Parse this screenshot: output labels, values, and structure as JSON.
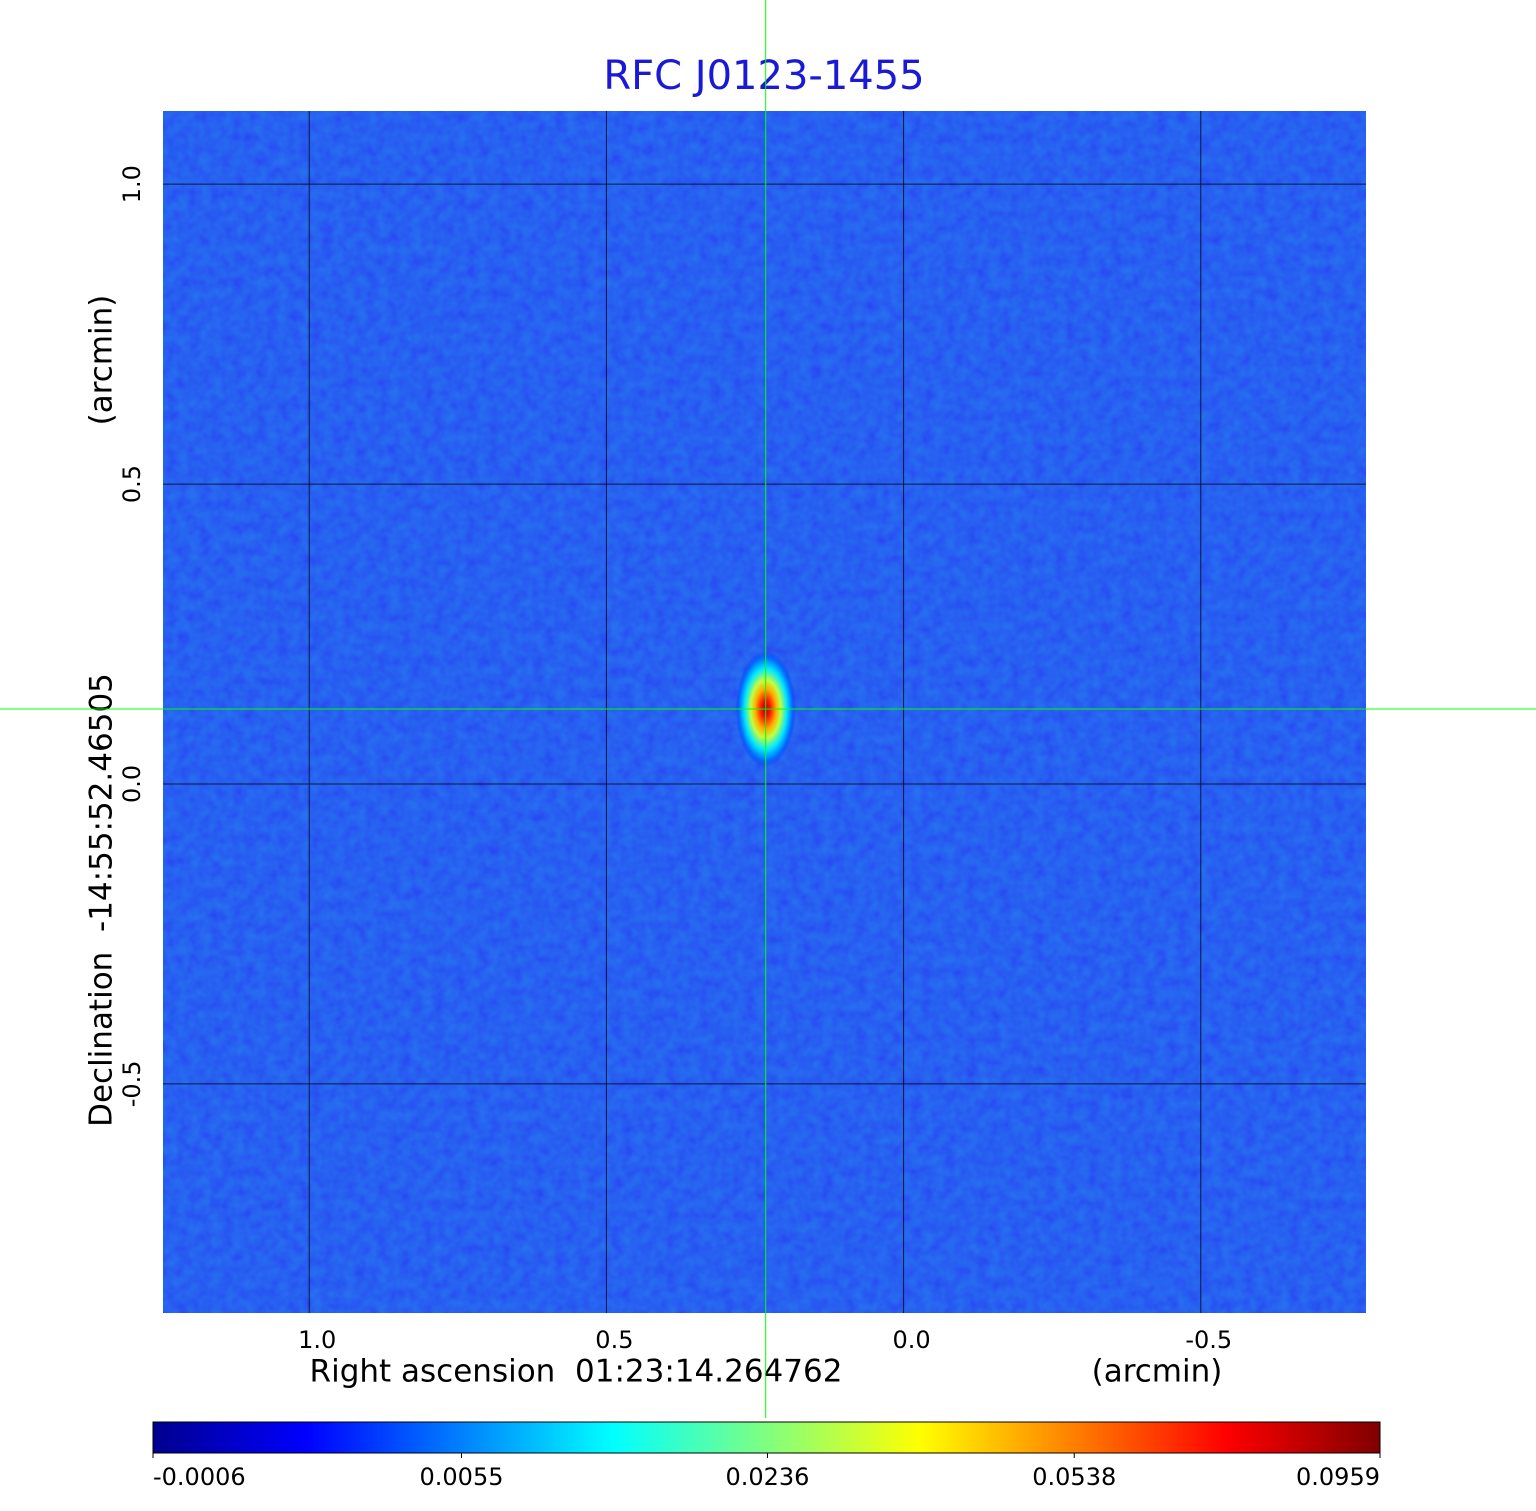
{
  "chart_data": {
    "type": "image",
    "title": "RFC J0123-1455",
    "x_label": "Right ascension  01:23:14.264762",
    "x_unit": "(arcmin)",
    "y_label": "Declination  -14:55:52.46505",
    "y_unit": "(arcmin)",
    "xlim": [
      1.246,
      -0.778
    ],
    "ylim": [
      -0.882,
      1.122
    ],
    "xticks": [
      {
        "value": 1,
        "label": "1.0"
      },
      0.5,
      {
        "value": 0,
        "label": "0.0"
      },
      -0.5
    ],
    "yticks": [
      {
        "value": 1,
        "label": "1.0"
      },
      0.5,
      {
        "value": 0,
        "label": "0.0"
      },
      -0.5
    ],
    "grid": true,
    "colormap": "jet",
    "colorbar_scale": "sqrt",
    "clim": [
      -0.0006,
      0.0959
    ],
    "colorbar_ticks": [
      -0.0006,
      0.0055,
      0.0236,
      0.0538,
      0.0959
    ],
    "crosshair": {
      "x": 0.232,
      "y": 0.125,
      "color": "#00ff00"
    }
  }
}
